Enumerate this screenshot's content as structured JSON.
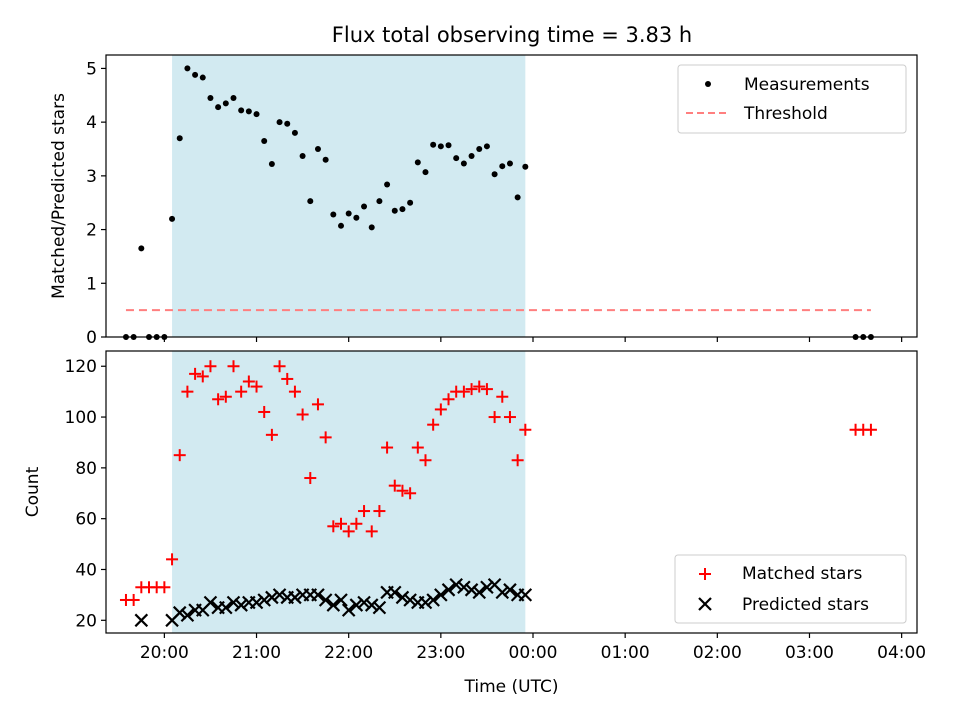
{
  "title": "Flux total observing time = 3.83 h",
  "chart_data": [
    {
      "type": "scatter",
      "ylabel": "Matched/Predicted stars",
      "ylim": [
        0,
        5.25
      ],
      "yticks": [
        0,
        1,
        2,
        3,
        4,
        5
      ],
      "xlim": [
        "19:22",
        "04:10"
      ],
      "grid": false,
      "legend_position": "top-right",
      "shaded_interval": [
        "20:05",
        "23:55"
      ],
      "shaded_color": "#add8e6",
      "series": [
        {
          "name": "Measurements",
          "marker": "dot",
          "color": "#000000",
          "x": [
            "19:35",
            "19:40",
            "19:45",
            "19:50",
            "19:55",
            "20:00",
            "20:05",
            "20:10",
            "20:15",
            "20:20",
            "20:25",
            "20:30",
            "20:35",
            "20:40",
            "20:45",
            "20:50",
            "20:55",
            "21:00",
            "21:05",
            "21:10",
            "21:15",
            "21:20",
            "21:25",
            "21:30",
            "21:35",
            "21:40",
            "21:45",
            "21:50",
            "21:55",
            "22:00",
            "22:05",
            "22:10",
            "22:15",
            "22:20",
            "22:25",
            "22:30",
            "22:35",
            "22:40",
            "22:45",
            "22:50",
            "22:55",
            "23:00",
            "23:05",
            "23:10",
            "23:15",
            "23:20",
            "23:25",
            "23:30",
            "23:35",
            "23:40",
            "23:45",
            "23:50",
            "23:55",
            "03:30",
            "03:35",
            "03:40"
          ],
          "y": [
            0,
            0,
            1.65,
            0,
            0,
            0,
            2.2,
            3.7,
            5.0,
            4.88,
            4.83,
            4.45,
            4.28,
            4.35,
            4.45,
            4.22,
            4.2,
            4.15,
            3.65,
            3.22,
            4.0,
            3.97,
            3.8,
            3.37,
            2.53,
            3.5,
            3.3,
            2.28,
            2.07,
            2.3,
            2.22,
            2.43,
            2.04,
            2.53,
            2.84,
            2.35,
            2.38,
            2.5,
            3.25,
            3.07,
            3.58,
            3.55,
            3.57,
            3.33,
            3.23,
            3.37,
            3.5,
            3.55,
            3.03,
            3.18,
            3.23,
            2.6,
            3.17,
            0,
            0,
            0
          ]
        },
        {
          "name": "Threshold",
          "marker": "dashed-line",
          "color": "#ff7f7f",
          "x": [
            "19:35",
            "03:40"
          ],
          "y": [
            0.5,
            0.5
          ]
        }
      ]
    },
    {
      "type": "scatter",
      "ylabel": "Count",
      "xlabel": "Time (UTC)",
      "ylim": [
        15,
        126
      ],
      "yticks": [
        20,
        40,
        60,
        80,
        100,
        120
      ],
      "xlim": [
        "19:22",
        "04:10"
      ],
      "xticks": [
        "20:00",
        "21:00",
        "22:00",
        "23:00",
        "00:00",
        "01:00",
        "02:00",
        "03:00",
        "04:00"
      ],
      "grid": false,
      "legend_position": "bottom-right",
      "shaded_interval": [
        "20:05",
        "23:55"
      ],
      "shaded_color": "#add8e6",
      "series": [
        {
          "name": "Matched stars",
          "marker": "plus",
          "color": "#ff0000",
          "x": [
            "19:35",
            "19:40",
            "19:45",
            "19:50",
            "19:55",
            "20:00",
            "20:05",
            "20:10",
            "20:15",
            "20:20",
            "20:25",
            "20:30",
            "20:35",
            "20:40",
            "20:45",
            "20:50",
            "20:55",
            "21:00",
            "21:05",
            "21:10",
            "21:15",
            "21:20",
            "21:25",
            "21:30",
            "21:35",
            "21:40",
            "21:45",
            "21:50",
            "21:55",
            "22:00",
            "22:05",
            "22:10",
            "22:15",
            "22:20",
            "22:25",
            "22:30",
            "22:35",
            "22:40",
            "22:45",
            "22:50",
            "22:55",
            "23:00",
            "23:05",
            "23:10",
            "23:15",
            "23:20",
            "23:25",
            "23:30",
            "23:35",
            "23:40",
            "23:45",
            "23:50",
            "23:55",
            "03:30",
            "03:35",
            "03:40"
          ],
          "y": [
            28,
            28,
            33,
            33,
            33,
            33,
            44,
            85,
            110,
            117,
            116,
            120,
            107,
            108,
            120,
            110,
            114,
            112,
            102,
            93,
            120,
            115,
            110,
            101,
            76,
            105,
            92,
            57,
            58,
            55,
            58,
            63,
            55,
            63,
            88,
            73,
            71,
            70,
            88,
            83,
            97,
            103,
            107,
            110,
            110,
            111,
            112,
            111,
            100,
            108,
            100,
            83,
            95,
            95,
            95,
            95
          ]
        },
        {
          "name": "Predicted stars",
          "marker": "x",
          "color": "#000000",
          "x": [
            "19:45",
            "20:05",
            "20:10",
            "20:15",
            "20:20",
            "20:25",
            "20:30",
            "20:35",
            "20:40",
            "20:45",
            "20:50",
            "20:55",
            "21:00",
            "21:05",
            "21:10",
            "21:15",
            "21:20",
            "21:25",
            "21:30",
            "21:35",
            "21:40",
            "21:45",
            "21:50",
            "21:55",
            "22:00",
            "22:05",
            "22:10",
            "22:15",
            "22:20",
            "22:25",
            "22:30",
            "22:35",
            "22:40",
            "22:45",
            "22:50",
            "22:55",
            "23:00",
            "23:05",
            "23:10",
            "23:15",
            "23:20",
            "23:25",
            "23:30",
            "23:35",
            "23:40",
            "23:45",
            "23:50",
            "23:55"
          ],
          "y": [
            20,
            20,
            23,
            22,
            24,
            24,
            27,
            25,
            25,
            27,
            26,
            27,
            27,
            28,
            29,
            30,
            29,
            29,
            30,
            30,
            30,
            28,
            26,
            28,
            24,
            26,
            27,
            26,
            25,
            31,
            31,
            29,
            28,
            27,
            27,
            28,
            30,
            32,
            34,
            33,
            32,
            31,
            33,
            34,
            31,
            32,
            30,
            30
          ]
        }
      ]
    }
  ]
}
